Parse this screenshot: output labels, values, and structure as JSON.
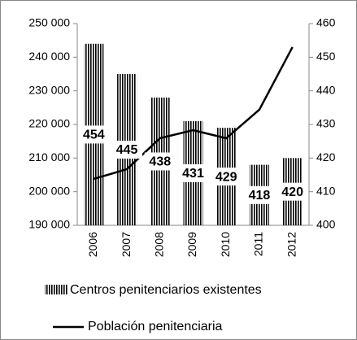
{
  "chart_data": {
    "type": "bar_line",
    "categories": [
      "2006",
      "2007",
      "2008",
      "2009",
      "2010",
      "2011",
      "2012"
    ],
    "series": [
      {
        "name": "Centros penitenciarios existentes",
        "color": "#000000",
        "axis": "y2",
        "values": [
          454,
          445,
          438,
          431,
          429,
          418,
          420
        ]
      },
      {
        "name": "Población penitenciaria",
        "color": "#000000",
        "axis": "y",
        "values": [
          203800,
          206700,
          215900,
          218300,
          215900,
          224400,
          243000
        ]
      }
    ],
    "ylim": [
      190000,
      250000
    ],
    "yticks": [
      {
        "value": 190000,
        "label": "190 000"
      },
      {
        "value": 200000,
        "label": "200 000"
      },
      {
        "value": 210000,
        "label": "210 000"
      },
      {
        "value": 220000,
        "label": "220 000"
      },
      {
        "value": 230000,
        "label": "230 000"
      },
      {
        "value": 240000,
        "label": "240 000"
      },
      {
        "value": 250000,
        "label": "250 000"
      }
    ],
    "y2lim": [
      400,
      460
    ],
    "y2ticks": [
      400,
      410,
      420,
      430,
      440,
      450,
      460
    ]
  }
}
